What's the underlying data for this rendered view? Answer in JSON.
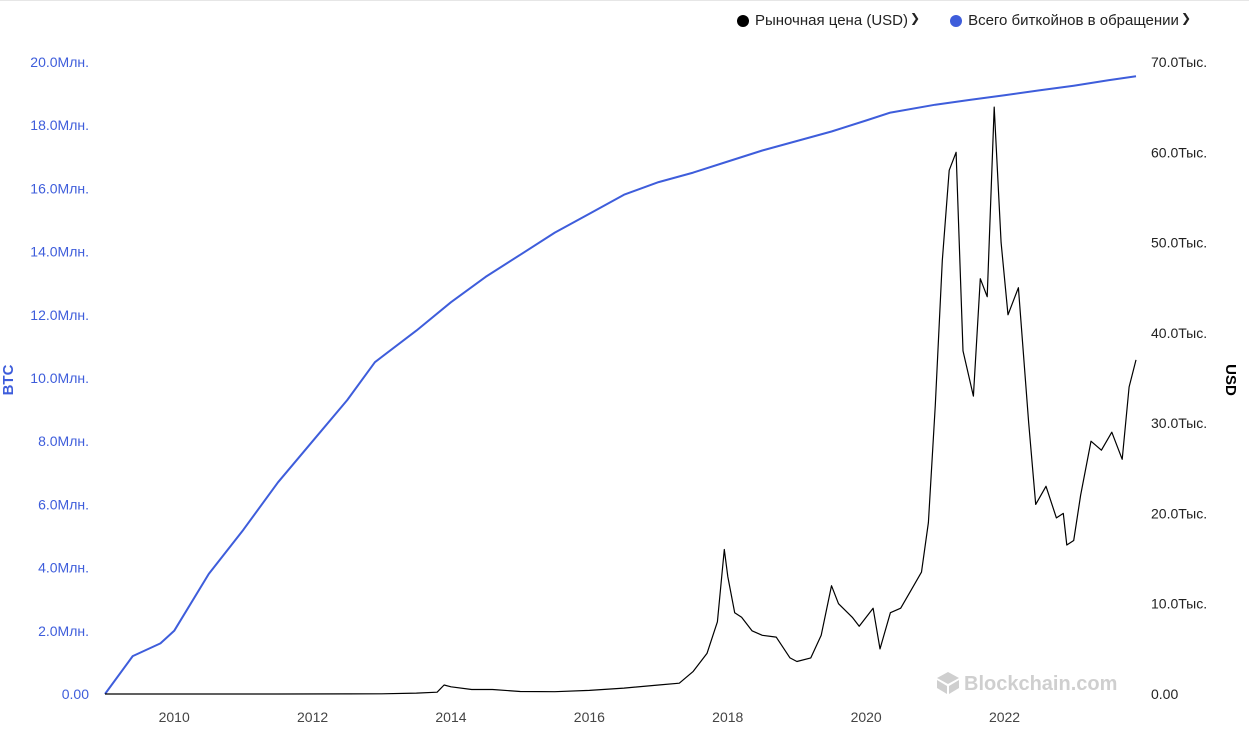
{
  "legend": {
    "items": [
      {
        "label": "Рыночная цена (USD)",
        "color": "#000000"
      },
      {
        "label": "Всего биткойнов в обращении",
        "color": "#3e5ddb"
      }
    ]
  },
  "watermark": "Blockchain.com",
  "chart_data": {
    "type": "line",
    "left_axis": {
      "label": "BTC",
      "color": "#3e5ddb",
      "range": [
        0,
        20000000
      ],
      "tick_labels": [
        "0.00",
        "2.0Млн.",
        "4.0Млн.",
        "6.0Млн.",
        "8.0Млн.",
        "10.0Млн.",
        "12.0Млн.",
        "14.0Млн.",
        "16.0Млн.",
        "18.0Млн.",
        "20.0Млн."
      ]
    },
    "right_axis": {
      "label": "USD",
      "color": "#000000",
      "range": [
        0,
        70000
      ],
      "tick_labels": [
        "0.00",
        "10.0Тыс.",
        "20.0Тыс.",
        "30.0Тыс.",
        "40.0Тыс.",
        "50.0Тыс.",
        "60.0Тыс.",
        "70.0Тыс."
      ]
    },
    "x_axis": {
      "range": [
        2009.0,
        2023.9
      ],
      "tick_labels": [
        "2010",
        "2012",
        "2014",
        "2016",
        "2018",
        "2020",
        "2022"
      ]
    },
    "grid": false,
    "series": [
      {
        "name": "Всего биткойнов в обращении",
        "axis": "left",
        "color": "#3e5ddb",
        "points": [
          [
            2009.0,
            0
          ],
          [
            2009.4,
            1200000
          ],
          [
            2009.8,
            1600000
          ],
          [
            2010.0,
            2000000
          ],
          [
            2010.5,
            3800000
          ],
          [
            2011.0,
            5200000
          ],
          [
            2011.5,
            6700000
          ],
          [
            2012.0,
            8000000
          ],
          [
            2012.5,
            9300000
          ],
          [
            2012.9,
            10500000
          ],
          [
            2013.5,
            11500000
          ],
          [
            2014.0,
            12400000
          ],
          [
            2014.5,
            13200000
          ],
          [
            2015.0,
            13900000
          ],
          [
            2015.5,
            14600000
          ],
          [
            2016.0,
            15200000
          ],
          [
            2016.5,
            15800000
          ],
          [
            2017.0,
            16200000
          ],
          [
            2017.5,
            16500000
          ],
          [
            2018.0,
            16850000
          ],
          [
            2018.5,
            17200000
          ],
          [
            2019.0,
            17500000
          ],
          [
            2019.5,
            17800000
          ],
          [
            2020.0,
            18150000
          ],
          [
            2020.35,
            18400000
          ],
          [
            2021.0,
            18650000
          ],
          [
            2021.5,
            18800000
          ],
          [
            2022.0,
            18950000
          ],
          [
            2022.5,
            19100000
          ],
          [
            2023.0,
            19250000
          ],
          [
            2023.5,
            19420000
          ],
          [
            2023.9,
            19550000
          ]
        ]
      },
      {
        "name": "Рыночная цена (USD)",
        "axis": "right",
        "color": "#000000",
        "points": [
          [
            2009.0,
            0
          ],
          [
            2010.5,
            0
          ],
          [
            2011.5,
            5
          ],
          [
            2012.5,
            10
          ],
          [
            2013.0,
            20
          ],
          [
            2013.5,
            100
          ],
          [
            2013.8,
            200
          ],
          [
            2013.9,
            1000
          ],
          [
            2014.0,
            800
          ],
          [
            2014.3,
            500
          ],
          [
            2014.6,
            500
          ],
          [
            2015.0,
            280
          ],
          [
            2015.5,
            250
          ],
          [
            2016.0,
            400
          ],
          [
            2016.5,
            650
          ],
          [
            2017.0,
            1000
          ],
          [
            2017.3,
            1200
          ],
          [
            2017.5,
            2500
          ],
          [
            2017.7,
            4500
          ],
          [
            2017.85,
            8000
          ],
          [
            2017.95,
            16000
          ],
          [
            2018.0,
            13000
          ],
          [
            2018.1,
            9000
          ],
          [
            2018.2,
            8500
          ],
          [
            2018.35,
            7000
          ],
          [
            2018.5,
            6500
          ],
          [
            2018.7,
            6300
          ],
          [
            2018.9,
            4000
          ],
          [
            2019.0,
            3600
          ],
          [
            2019.2,
            4000
          ],
          [
            2019.35,
            6500
          ],
          [
            2019.5,
            12000
          ],
          [
            2019.6,
            10000
          ],
          [
            2019.8,
            8500
          ],
          [
            2019.9,
            7500
          ],
          [
            2020.1,
            9500
          ],
          [
            2020.2,
            5000
          ],
          [
            2020.35,
            9000
          ],
          [
            2020.5,
            9500
          ],
          [
            2020.65,
            11500
          ],
          [
            2020.8,
            13500
          ],
          [
            2020.9,
            19000
          ],
          [
            2021.0,
            32000
          ],
          [
            2021.1,
            48000
          ],
          [
            2021.2,
            58000
          ],
          [
            2021.3,
            60000
          ],
          [
            2021.4,
            38000
          ],
          [
            2021.55,
            33000
          ],
          [
            2021.65,
            46000
          ],
          [
            2021.75,
            44000
          ],
          [
            2021.85,
            65000
          ],
          [
            2021.95,
            50000
          ],
          [
            2022.05,
            42000
          ],
          [
            2022.2,
            45000
          ],
          [
            2022.35,
            30000
          ],
          [
            2022.45,
            21000
          ],
          [
            2022.6,
            23000
          ],
          [
            2022.75,
            19500
          ],
          [
            2022.85,
            20000
          ],
          [
            2022.9,
            16500
          ],
          [
            2023.0,
            17000
          ],
          [
            2023.1,
            22000
          ],
          [
            2023.25,
            28000
          ],
          [
            2023.4,
            27000
          ],
          [
            2023.55,
            29000
          ],
          [
            2023.7,
            26000
          ],
          [
            2023.8,
            34000
          ],
          [
            2023.9,
            37000
          ]
        ]
      }
    ]
  }
}
